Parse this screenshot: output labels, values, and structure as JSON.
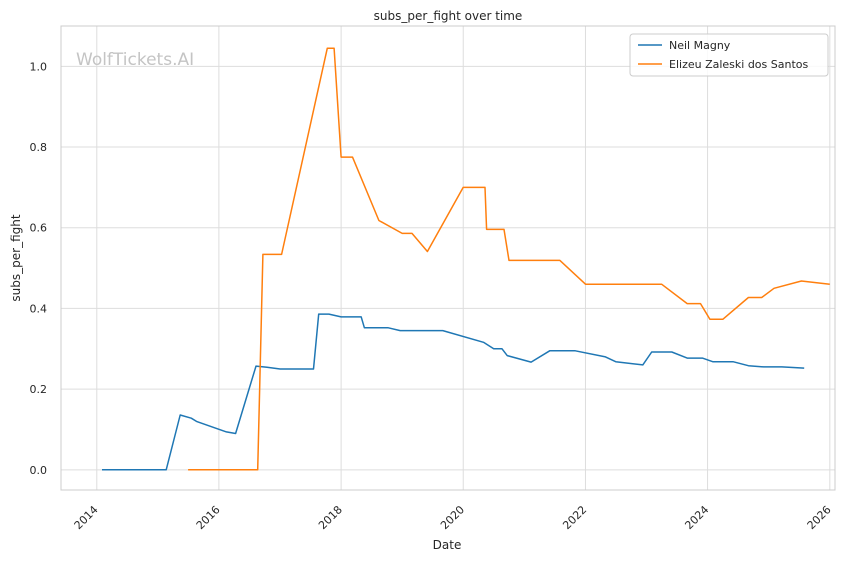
{
  "chart_data": {
    "type": "line",
    "title": "subs_per_fight over time",
    "xlabel": "Date",
    "ylabel": "subs_per_fight",
    "watermark": "WolfTickets.AI",
    "xlim": [
      "2013-06-01",
      "2026-02-01"
    ],
    "ylim": [
      -0.05,
      1.1
    ],
    "x_ticks": [
      "2014",
      "2016",
      "2018",
      "2020",
      "2022",
      "2024",
      "2026"
    ],
    "y_ticks": [
      "0.0",
      "0.2",
      "0.4",
      "0.6",
      "0.8",
      "1.0"
    ],
    "grid": true,
    "legend_position": "top-right",
    "series": [
      {
        "name": "Neil Magny",
        "color": "#1f77b4",
        "points": [
          [
            "2014-02-01",
            0.0
          ],
          [
            "2015-02-20",
            0.0
          ],
          [
            "2015-05-15",
            0.136
          ],
          [
            "2015-07-20",
            0.128
          ],
          [
            "2015-08-20",
            0.12
          ],
          [
            "2016-02-15",
            0.094
          ],
          [
            "2016-04-10",
            0.09
          ],
          [
            "2016-08-10",
            0.257
          ],
          [
            "2016-10-15",
            0.254
          ],
          [
            "2017-01-01",
            0.25
          ],
          [
            "2017-07-20",
            0.25
          ],
          [
            "2017-08-20",
            0.386
          ],
          [
            "2017-10-20",
            0.386
          ],
          [
            "2018-01-01",
            0.379
          ],
          [
            "2018-05-01",
            0.379
          ],
          [
            "2018-05-20",
            0.352
          ],
          [
            "2018-10-10",
            0.352
          ],
          [
            "2018-12-20",
            0.345
          ],
          [
            "2019-09-01",
            0.345
          ],
          [
            "2020-05-01",
            0.316
          ],
          [
            "2020-07-01",
            0.3
          ],
          [
            "2020-08-20",
            0.3
          ],
          [
            "2020-09-20",
            0.283
          ],
          [
            "2021-02-10",
            0.267
          ],
          [
            "2021-06-01",
            0.295
          ],
          [
            "2021-11-01",
            0.295
          ],
          [
            "2022-05-01",
            0.28
          ],
          [
            "2022-07-01",
            0.268
          ],
          [
            "2022-12-10",
            0.26
          ],
          [
            "2023-02-01",
            0.292
          ],
          [
            "2023-06-01",
            0.292
          ],
          [
            "2023-09-01",
            0.277
          ],
          [
            "2023-12-01",
            0.277
          ],
          [
            "2024-02-01",
            0.268
          ],
          [
            "2024-06-01",
            0.268
          ],
          [
            "2024-09-01",
            0.258
          ],
          [
            "2024-12-01",
            0.255
          ],
          [
            "2025-03-20",
            0.255
          ],
          [
            "2025-08-01",
            0.252
          ]
        ]
      },
      {
        "name": "Elizeu Zaleski dos Santos",
        "color": "#ff7f0e",
        "points": [
          [
            "2015-07-01",
            0.0
          ],
          [
            "2016-08-20",
            0.0
          ],
          [
            "2016-09-20",
            0.534
          ],
          [
            "2017-01-10",
            0.534
          ],
          [
            "2017-10-10",
            1.045
          ],
          [
            "2017-11-20",
            1.045
          ],
          [
            "2018-01-01",
            0.775
          ],
          [
            "2018-03-10",
            0.775
          ],
          [
            "2018-08-15",
            0.618
          ],
          [
            "2019-01-01",
            0.586
          ],
          [
            "2019-03-01",
            0.586
          ],
          [
            "2019-06-01",
            0.541
          ],
          [
            "2020-01-01",
            0.7
          ],
          [
            "2020-05-10",
            0.7
          ],
          [
            "2020-05-20",
            0.596
          ],
          [
            "2020-09-01",
            0.596
          ],
          [
            "2020-10-01",
            0.519
          ],
          [
            "2021-08-01",
            0.519
          ],
          [
            "2022-01-01",
            0.46
          ],
          [
            "2023-04-01",
            0.46
          ],
          [
            "2023-09-01",
            0.412
          ],
          [
            "2023-11-20",
            0.412
          ],
          [
            "2024-01-15",
            0.373
          ],
          [
            "2024-04-01",
            0.373
          ],
          [
            "2024-09-01",
            0.427
          ],
          [
            "2024-11-20",
            0.427
          ],
          [
            "2025-02-01",
            0.45
          ],
          [
            "2025-07-15",
            0.468
          ],
          [
            "2026-01-01",
            0.46
          ]
        ]
      }
    ]
  }
}
